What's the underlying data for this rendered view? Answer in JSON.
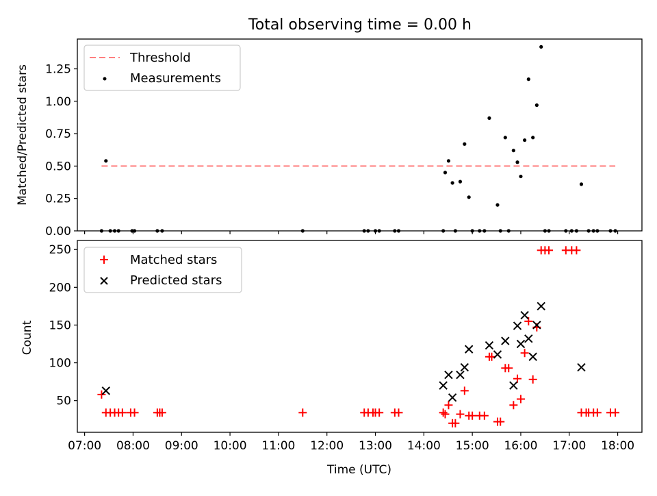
{
  "title": "Total observing time = 0.00 h",
  "chart_data": [
    {
      "type": "scatter",
      "ylabel": "Matched/Predicted stars",
      "xlabel": "",
      "ylim": [
        0,
        1.48
      ],
      "yticks": [
        0.0,
        0.25,
        0.5,
        0.75,
        1.0,
        1.25
      ],
      "ytick_labels": [
        "0.00",
        "0.25",
        "0.50",
        "0.75",
        "1.00",
        "1.25"
      ],
      "x_unit": "hours UTC",
      "xlim": [
        6.85,
        18.5
      ],
      "legend_position": "upper left",
      "legend": [
        {
          "label": "Threshold",
          "marker": "dashed-line",
          "color": "#ff7f7f"
        },
        {
          "label": "Measurements",
          "marker": "dot",
          "color": "#000000"
        }
      ],
      "threshold": {
        "name": "Threshold",
        "value": 0.5,
        "x_range": [
          7.35,
          17.95
        ],
        "color": "#ff7f7f"
      },
      "series": [
        {
          "name": "Measurements",
          "color": "#000000",
          "x": [
            7.35,
            7.44,
            7.53,
            7.62,
            7.7,
            7.98,
            8.03,
            8.5,
            8.6,
            11.5,
            12.77,
            12.85,
            13.0,
            13.08,
            13.4,
            13.48,
            14.4,
            14.44,
            14.51,
            14.59,
            14.65,
            14.75,
            14.84,
            14.93,
            15.0,
            15.15,
            15.25,
            15.35,
            15.52,
            15.58,
            15.68,
            15.75,
            15.85,
            15.93,
            16.0,
            16.08,
            16.16,
            16.25,
            16.33,
            16.42,
            16.5,
            16.58,
            16.93,
            17.05,
            17.15,
            17.25,
            17.4,
            17.5,
            17.58,
            17.85,
            17.95
          ],
          "y": [
            0.0,
            0.54,
            0.0,
            0.0,
            0.0,
            0.0,
            0.0,
            0.0,
            0.0,
            0.0,
            0.0,
            0.0,
            0.0,
            0.0,
            0.0,
            0.0,
            0.0,
            0.45,
            0.54,
            0.37,
            0.0,
            0.38,
            0.67,
            0.26,
            0.0,
            0.0,
            0.0,
            0.87,
            0.2,
            0.0,
            0.72,
            0.0,
            0.62,
            0.53,
            0.42,
            0.7,
            1.17,
            0.72,
            0.97,
            1.42,
            0.0,
            0.0,
            0.0,
            0.0,
            0.0,
            0.36,
            0.0,
            0.0,
            0.0,
            0.0,
            0.0
          ]
        }
      ]
    },
    {
      "type": "scatter",
      "ylabel": "Count",
      "xlabel": "Time (UTC)",
      "ylim": [
        8,
        262
      ],
      "yticks": [
        50,
        100,
        150,
        200,
        250
      ],
      "ytick_labels": [
        "50",
        "100",
        "150",
        "200",
        "250"
      ],
      "x_unit": "hours UTC",
      "xlim": [
        6.85,
        18.5
      ],
      "xticks": [
        7,
        8,
        9,
        10,
        11,
        12,
        13,
        14,
        15,
        16,
        17,
        18
      ],
      "xtick_labels": [
        "07:00",
        "08:00",
        "09:00",
        "10:00",
        "11:00",
        "12:00",
        "13:00",
        "14:00",
        "15:00",
        "16:00",
        "17:00",
        "18:00"
      ],
      "legend_position": "upper left",
      "legend": [
        {
          "label": "Matched stars",
          "marker": "plus",
          "color": "#ff0000"
        },
        {
          "label": "Predicted stars",
          "marker": "x",
          "color": "#000000"
        }
      ],
      "series": [
        {
          "name": "Matched stars",
          "color": "#ff0000",
          "x": [
            7.35,
            7.44,
            7.53,
            7.62,
            7.7,
            7.78,
            7.95,
            8.03,
            8.5,
            8.55,
            8.6,
            11.5,
            12.77,
            12.85,
            12.95,
            13.0,
            13.08,
            13.4,
            13.48,
            14.4,
            14.44,
            14.51,
            14.59,
            14.65,
            14.75,
            14.84,
            14.93,
            15.0,
            15.15,
            15.25,
            15.35,
            15.4,
            15.52,
            15.58,
            15.68,
            15.75,
            15.85,
            15.93,
            16.0,
            16.08,
            16.16,
            16.25,
            16.33,
            16.42,
            16.5,
            16.58,
            16.93,
            17.05,
            17.15,
            17.25,
            17.35,
            17.4,
            17.5,
            17.58,
            17.85,
            17.95
          ],
          "y": [
            58,
            34,
            34,
            34,
            34,
            34,
            34,
            34,
            34,
            34,
            34,
            34,
            34,
            34,
            34,
            34,
            34,
            34,
            34,
            34,
            32,
            44,
            20,
            20,
            32,
            63,
            30,
            30,
            30,
            30,
            108,
            108,
            22,
            22,
            93,
            93,
            44,
            79,
            52,
            113,
            155,
            78,
            147,
            249,
            249,
            249,
            249,
            249,
            249,
            34,
            34,
            34,
            34,
            34,
            34,
            34
          ]
        },
        {
          "name": "Predicted stars",
          "color": "#000000",
          "x": [
            7.44,
            14.4,
            14.51,
            14.59,
            14.75,
            14.84,
            14.93,
            15.35,
            15.52,
            15.68,
            15.85,
            15.93,
            16.0,
            16.08,
            16.16,
            16.25,
            16.33,
            16.42,
            17.25
          ],
          "y": [
            63,
            70,
            84,
            54,
            84,
            94,
            118,
            123,
            111,
            129,
            70,
            149,
            125,
            163,
            132,
            108,
            150,
            175,
            94
          ]
        }
      ]
    }
  ]
}
